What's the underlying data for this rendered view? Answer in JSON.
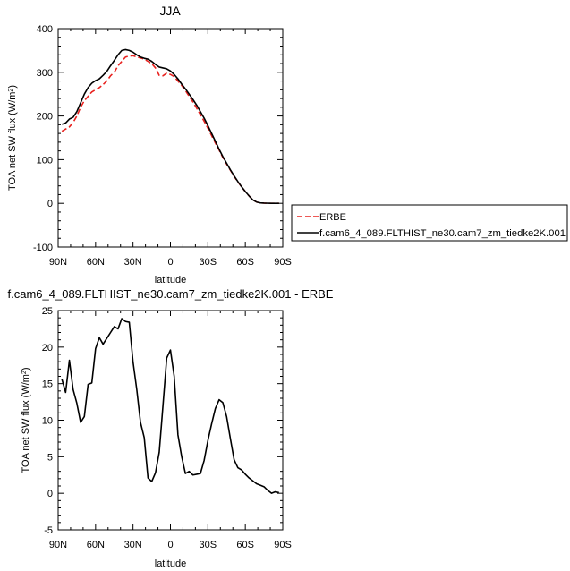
{
  "figure_title": "JJA",
  "chart_data": [
    {
      "type": "line",
      "title": "",
      "xlabel": "latitude",
      "ylabel": "TOA net SW flux (W/m²)",
      "ylabel_main": "TOA net SW flux (W/m",
      "ylabel_sup": "2",
      "ylabel_end": ")",
      "xlim": [
        90,
        -90
      ],
      "ylim": [
        -100,
        400
      ],
      "xticks": [
        {
          "value": 90,
          "label": "90N"
        },
        {
          "value": 60,
          "label": "60N"
        },
        {
          "value": 30,
          "label": "30N"
        },
        {
          "value": 0,
          "label": "0"
        },
        {
          "value": -30,
          "label": "30S"
        },
        {
          "value": -60,
          "label": "60S"
        },
        {
          "value": -90,
          "label": "90S"
        }
      ],
      "yticks": [
        {
          "value": 400,
          "label": "400"
        },
        {
          "value": 300,
          "label": "300"
        },
        {
          "value": 200,
          "label": "200"
        },
        {
          "value": 100,
          "label": "100"
        },
        {
          "value": 0,
          "label": "0"
        },
        {
          "value": -100,
          "label": "-100"
        }
      ],
      "grid": false,
      "legend_position": "right",
      "series": [
        {
          "name": "ERBE",
          "color": "#e8221f",
          "dash": "dashed",
          "x": [
            87,
            84,
            81,
            78,
            75,
            72,
            69,
            66,
            63,
            60,
            57,
            54,
            51,
            48,
            45,
            42,
            39,
            36,
            33,
            30,
            27,
            24,
            21,
            18,
            15,
            12,
            9,
            6,
            3,
            0,
            -3,
            -6,
            -9,
            -12,
            -15,
            -18,
            -21,
            -24,
            -27,
            -30,
            -33,
            -36,
            -39,
            -42,
            -45,
            -48,
            -51,
            -54,
            -57,
            -60,
            -63,
            -66,
            -69,
            -72,
            -75,
            -78,
            -81,
            -84,
            -87
          ],
          "y": [
            165,
            170,
            175,
            185,
            200,
            220,
            235,
            245,
            255,
            260,
            265,
            272,
            280,
            292,
            300,
            315,
            325,
            335,
            337,
            338,
            335,
            333,
            330,
            325,
            320,
            310,
            293,
            292,
            298,
            295,
            290,
            280,
            270,
            258,
            245,
            232,
            218,
            203,
            188,
            172,
            155,
            138,
            122,
            105,
            90,
            76,
            62,
            49,
            38,
            27,
            17,
            8,
            3,
            1,
            0.5,
            0.2,
            0,
            0,
            0
          ]
        },
        {
          "name": "f.cam6_4_089.FLTHIST_ne30.cam7_zm_tiedke2K.001",
          "color": "#000000",
          "dash": "solid",
          "x": [
            87,
            84,
            81,
            78,
            75,
            72,
            69,
            66,
            63,
            60,
            57,
            54,
            51,
            48,
            45,
            42,
            39,
            36,
            33,
            30,
            27,
            24,
            21,
            18,
            15,
            12,
            9,
            6,
            3,
            0,
            -3,
            -6,
            -9,
            -12,
            -15,
            -18,
            -21,
            -24,
            -27,
            -30,
            -33,
            -36,
            -39,
            -42,
            -45,
            -48,
            -51,
            -54,
            -57,
            -60,
            -63,
            -66,
            -69,
            -72,
            -75,
            -78,
            -81,
            -84,
            -87
          ],
          "y": [
            181,
            184,
            193,
            197,
            210,
            230,
            250,
            265,
            275,
            281,
            285,
            293,
            302,
            315,
            327,
            340,
            350,
            352,
            350,
            346,
            340,
            335,
            332,
            330,
            325,
            318,
            312,
            310,
            308,
            303,
            295,
            285,
            273,
            262,
            250,
            238,
            225,
            210,
            195,
            178,
            160,
            142,
            124,
            107,
            92,
            77,
            63,
            50,
            38,
            27,
            17,
            8,
            3,
            1,
            0.5,
            0.2,
            0,
            0,
            0
          ]
        }
      ]
    },
    {
      "type": "line",
      "title": "f.cam6_4_089.FLTHIST_ne30.cam7_zm_tiedke2K.001 - ERBE",
      "xlabel": "latitude",
      "ylabel": "TOA net SW flux (W/m²)",
      "ylabel_main": "TOA net SW flux (W/m",
      "ylabel_sup": "2",
      "ylabel_end": ")",
      "xlim": [
        90,
        -90
      ],
      "ylim": [
        -5,
        25
      ],
      "xticks": [
        {
          "value": 90,
          "label": "90N"
        },
        {
          "value": 60,
          "label": "60N"
        },
        {
          "value": 30,
          "label": "30N"
        },
        {
          "value": 0,
          "label": "0"
        },
        {
          "value": -30,
          "label": "30S"
        },
        {
          "value": -60,
          "label": "60S"
        },
        {
          "value": -90,
          "label": "90S"
        }
      ],
      "yticks": [
        {
          "value": 25,
          "label": "25"
        },
        {
          "value": 20,
          "label": "20"
        },
        {
          "value": 15,
          "label": "15"
        },
        {
          "value": 10,
          "label": "10"
        },
        {
          "value": 5,
          "label": "5"
        },
        {
          "value": 0,
          "label": "0"
        },
        {
          "value": -5,
          "label": "-5"
        }
      ],
      "grid": false,
      "series": [
        {
          "name": "",
          "color": "#000000",
          "dash": "solid",
          "x": [
            87,
            84,
            81,
            78,
            75,
            72,
            69,
            66,
            63,
            60,
            57,
            54,
            51,
            48,
            45,
            42,
            39,
            36,
            33,
            30,
            27,
            24,
            21,
            18,
            15,
            12,
            9,
            6,
            3,
            0,
            -3,
            -6,
            -9,
            -12,
            -15,
            -18,
            -21,
            -24,
            -27,
            -30,
            -33,
            -36,
            -39,
            -42,
            -45,
            -48,
            -51,
            -54,
            -57,
            -60,
            -63,
            -66,
            -69,
            -72,
            -75,
            -78,
            -81,
            -84,
            -87
          ],
          "y": [
            15.6,
            13.8,
            18.2,
            14.2,
            12.3,
            9.7,
            10.5,
            14.9,
            15.1,
            19.8,
            21.3,
            20.4,
            21.2,
            22.0,
            22.8,
            22.5,
            23.9,
            23.5,
            23.4,
            18.0,
            14.2,
            9.7,
            7.6,
            2.1,
            1.6,
            2.8,
            5.6,
            12.0,
            18.5,
            19.6,
            16.0,
            8.0,
            5.0,
            2.7,
            3.0,
            2.5,
            2.6,
            2.7,
            4.5,
            7.2,
            9.5,
            11.6,
            12.8,
            12.4,
            10.5,
            7.5,
            4.6,
            3.5,
            3.2,
            2.6,
            2.1,
            1.7,
            1.3,
            1.1,
            0.9,
            0.4,
            0.0,
            0.2,
            0.1
          ]
        }
      ]
    }
  ]
}
